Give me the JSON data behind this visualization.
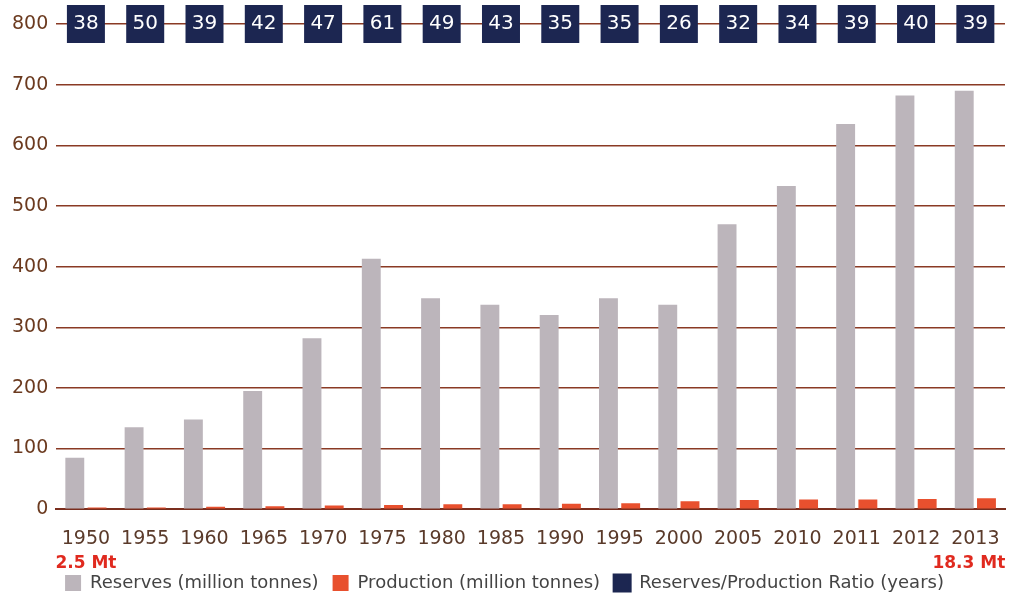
{
  "chart_data": {
    "type": "bar",
    "categories": [
      "1950",
      "1955",
      "1960",
      "1965",
      "1970",
      "1975",
      "1980",
      "1985",
      "1990",
      "1995",
      "2000",
      "2005",
      "2010",
      "2011",
      "2012",
      "2013"
    ],
    "series": [
      {
        "name": "Reserves (million tonnes)",
        "color": "#bcb5bb",
        "values": [
          85,
          135,
          148,
          195,
          282,
          413,
          348,
          337,
          320,
          348,
          337,
          470,
          533,
          635,
          682,
          690
        ]
      },
      {
        "name": "Production (million tonnes)",
        "color": "#e8502e",
        "values": [
          3,
          3,
          4,
          5,
          6,
          7,
          8,
          8,
          9,
          10,
          13,
          15,
          16,
          16,
          17,
          18
        ]
      },
      {
        "name": "Reserves/Production Ratio (years)",
        "color": "#1c2651",
        "type": "scatter",
        "values": [
          null,
          null,
          null,
          null,
          null,
          null,
          null,
          null,
          null,
          null,
          null,
          null,
          null,
          null,
          null,
          null
        ]
      }
    ],
    "ylim": [
      0,
      800
    ],
    "yticks": [
      0,
      100,
      200,
      300,
      400,
      500,
      600,
      700,
      800
    ],
    "grid": "y",
    "legend": "bottom",
    "annotations": [
      {
        "text": "38",
        "x": "1950",
        "y": 800
      },
      {
        "text": "50",
        "x": "1955",
        "y": 800
      },
      {
        "text": "39",
        "x": "1960",
        "y": 800
      },
      {
        "text": "42",
        "x": "1965",
        "y": 800
      },
      {
        "text": "47",
        "x": "1970",
        "y": 800
      },
      {
        "text": "61",
        "x": "1975",
        "y": 800
      },
      {
        "text": "49",
        "x": "1980",
        "y": 800
      },
      {
        "text": "43",
        "x": "1985",
        "y": 800
      },
      {
        "text": "35",
        "x": "1990",
        "y": 800
      },
      {
        "text": "35",
        "x": "1995",
        "y": 800
      },
      {
        "text": "26",
        "x": "2000",
        "y": 800
      },
      {
        "text": "32",
        "x": "2005",
        "y": 800
      },
      {
        "text": "34",
        "x": "2010",
        "y": 800
      },
      {
        "text": "39",
        "x": "2011",
        "y": 800
      },
      {
        "text": "40",
        "x": "2012",
        "y": 800
      },
      {
        "text": "39",
        "x": "2013",
        "y": 800
      },
      "2.5 Mt",
      "18.3 Mt"
    ]
  }
}
